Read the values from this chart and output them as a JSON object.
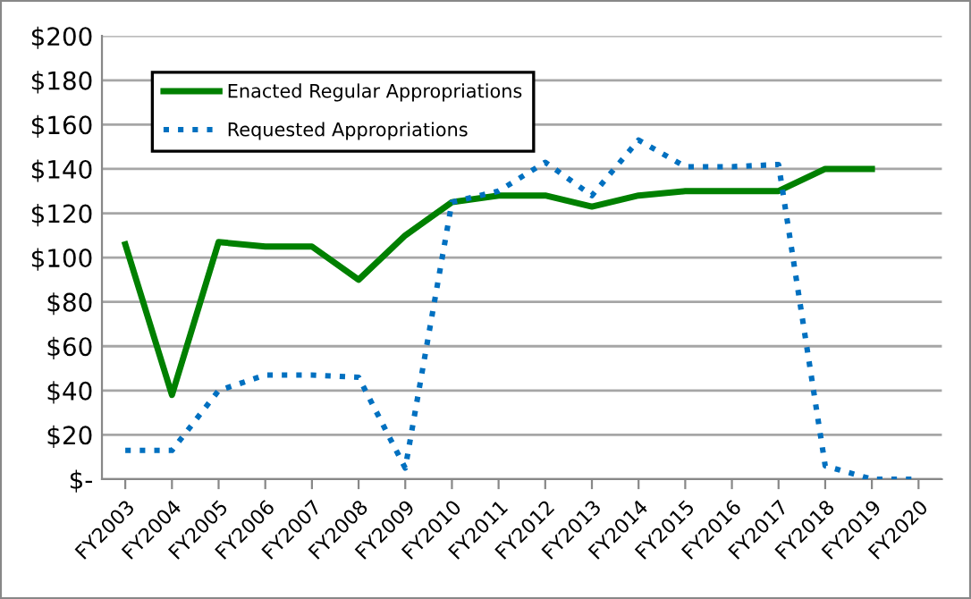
{
  "chart_data": {
    "type": "line",
    "categories": [
      "FY2003",
      "FY2004",
      "FY2005",
      "FY2006",
      "FY2007",
      "FY2008",
      "FY2009",
      "FY2010",
      "FY2011",
      "FY2012",
      "FY2013",
      "FY2014",
      "FY2015",
      "FY2016",
      "FY2017",
      "FY2018",
      "FY2019",
      "FY2020"
    ],
    "series": [
      {
        "name": "Enacted Regular Appropriations",
        "color": "#008000",
        "line_style": "solid",
        "values": [
          106,
          38,
          107,
          105,
          105,
          90,
          110,
          125,
          128,
          128,
          123,
          128,
          130,
          130,
          130,
          140,
          140,
          null
        ]
      },
      {
        "name": "Requested Appropriations",
        "color": "#0070c0",
        "line_style": "dotted",
        "values": [
          13,
          13,
          40,
          47,
          47,
          46,
          5,
          125,
          130,
          143,
          128,
          153,
          141,
          141,
          142,
          6,
          0,
          0
        ]
      }
    ],
    "ylim": [
      0,
      200
    ],
    "yticks": [
      {
        "value": 0,
        "label": "$-"
      },
      {
        "value": 20,
        "label": "$20"
      },
      {
        "value": 40,
        "label": "$40"
      },
      {
        "value": 60,
        "label": "$60"
      },
      {
        "value": 80,
        "label": "$80"
      },
      {
        "value": 100,
        "label": "$100"
      },
      {
        "value": 120,
        "label": "$120"
      },
      {
        "value": 140,
        "label": "$140"
      },
      {
        "value": 160,
        "label": "$160"
      },
      {
        "value": 180,
        "label": "$180"
      },
      {
        "value": 200,
        "label": "$200"
      }
    ],
    "grid": "y",
    "legend": "top left",
    "marker": "none"
  }
}
